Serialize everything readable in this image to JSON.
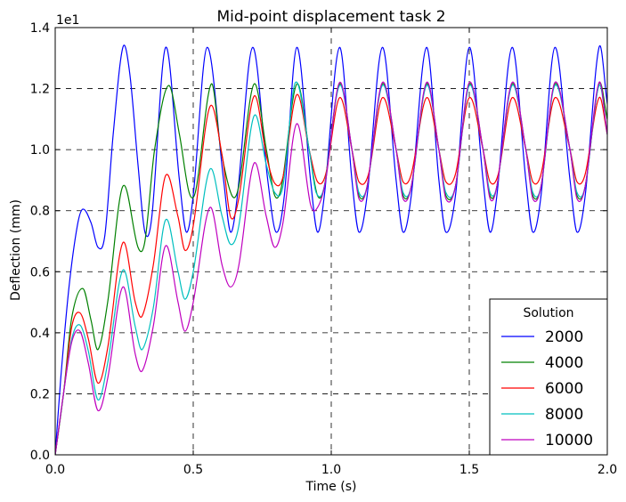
{
  "chart_data": {
    "type": "line",
    "title": "Mid-point displacement task 2",
    "xlabel": "Time (s)",
    "ylabel": "Deflection (mm)",
    "y_offset_text": "1e1",
    "xlim": [
      0.0,
      2.0
    ],
    "ylim": [
      0.0,
      1.4
    ],
    "xticks": [
      0.0,
      0.5,
      1.0,
      1.5,
      2.0
    ],
    "xtick_labels": [
      "0.0",
      "0.5",
      "1.0",
      "1.5",
      "2.0"
    ],
    "yticks": [
      0.0,
      0.2,
      0.4,
      0.6,
      0.8,
      1.0,
      1.2,
      1.4
    ],
    "ytick_labels": [
      "0.0",
      "0.2",
      "0.4",
      "0.6",
      "0.8",
      "1.0",
      "1.2",
      "1.4"
    ],
    "grid": true,
    "grid_style": "dashed",
    "legend": {
      "title": "Solution",
      "location": "lower right"
    },
    "series": [
      {
        "name": "2000",
        "color": "#0000ff",
        "x": [
          0.0,
          0.02,
          0.05,
          0.08,
          0.1,
          0.13,
          0.155,
          0.18,
          0.21,
          0.245,
          0.27,
          0.3,
          0.325,
          0.35,
          0.4,
          0.45,
          0.475,
          0.5,
          0.55,
          0.61,
          0.635,
          0.66,
          0.715,
          0.77,
          0.8,
          0.83,
          0.875,
          0.925,
          0.95,
          0.975,
          1.03,
          1.075,
          1.1,
          1.13,
          1.185,
          1.235,
          1.26,
          1.29,
          1.345,
          1.39,
          1.415,
          1.45,
          1.5,
          1.55,
          1.575,
          1.6,
          1.655,
          1.705,
          1.73,
          1.76,
          1.81,
          1.865,
          1.89,
          1.92,
          1.97,
          2.0
        ],
        "y": [
          0.0,
          0.25,
          0.55,
          0.75,
          0.805,
          0.76,
          0.68,
          0.72,
          1.05,
          1.335,
          1.25,
          0.95,
          0.73,
          0.78,
          1.335,
          0.9,
          0.73,
          0.85,
          1.335,
          0.9,
          0.73,
          0.85,
          1.335,
          0.9,
          0.73,
          0.85,
          1.335,
          0.9,
          0.73,
          0.85,
          1.335,
          0.9,
          0.73,
          0.85,
          1.335,
          0.9,
          0.73,
          0.85,
          1.335,
          0.9,
          0.73,
          0.85,
          1.335,
          0.9,
          0.73,
          0.85,
          1.335,
          0.9,
          0.73,
          0.85,
          1.335,
          0.9,
          0.73,
          0.85,
          1.335,
          1.15
        ]
      },
      {
        "name": "4000",
        "color": "#008000",
        "x": [
          0.0,
          0.03,
          0.06,
          0.1,
          0.13,
          0.155,
          0.19,
          0.245,
          0.3,
          0.325,
          0.36,
          0.41,
          0.45,
          0.485,
          0.51,
          0.565,
          0.6,
          0.64,
          0.665,
          0.72,
          0.765,
          0.795,
          0.82,
          0.875,
          0.92,
          0.95,
          0.975,
          1.03,
          1.075,
          1.1,
          1.13,
          1.185,
          1.235,
          1.26,
          1.29,
          1.345,
          1.39,
          1.415,
          1.45,
          1.5,
          1.55,
          1.575,
          1.6,
          1.655,
          1.705,
          1.73,
          1.76,
          1.81,
          1.865,
          1.89,
          1.92,
          1.97,
          2.0
        ],
        "y": [
          0.0,
          0.2,
          0.45,
          0.545,
          0.44,
          0.345,
          0.5,
          0.88,
          0.68,
          0.7,
          1.0,
          1.21,
          1.05,
          0.86,
          0.87,
          1.215,
          1.0,
          0.85,
          0.88,
          1.215,
          1.0,
          0.85,
          0.88,
          1.215,
          1.0,
          0.85,
          0.88,
          1.215,
          1.0,
          0.85,
          0.88,
          1.215,
          1.0,
          0.85,
          0.88,
          1.215,
          1.0,
          0.85,
          0.88,
          1.215,
          1.0,
          0.85,
          0.88,
          1.215,
          1.0,
          0.85,
          0.88,
          1.215,
          1.0,
          0.85,
          0.88,
          1.215,
          1.1
        ]
      },
      {
        "name": "6000",
        "color": "#ff0000",
        "x": [
          0.0,
          0.03,
          0.06,
          0.09,
          0.12,
          0.155,
          0.19,
          0.245,
          0.29,
          0.315,
          0.355,
          0.4,
          0.445,
          0.47,
          0.5,
          0.56,
          0.605,
          0.635,
          0.665,
          0.72,
          0.765,
          0.795,
          0.825,
          0.875,
          0.92,
          0.95,
          0.98,
          1.03,
          1.075,
          1.1,
          1.135,
          1.185,
          1.235,
          1.26,
          1.29,
          1.345,
          1.39,
          1.415,
          1.45,
          1.5,
          1.55,
          1.575,
          1.605,
          1.655,
          1.705,
          1.73,
          1.76,
          1.81,
          1.865,
          1.89,
          1.92,
          1.97,
          2.0
        ],
        "y": [
          0.0,
          0.2,
          0.42,
          0.465,
          0.38,
          0.235,
          0.35,
          0.695,
          0.5,
          0.455,
          0.62,
          0.915,
          0.78,
          0.67,
          0.75,
          1.14,
          0.98,
          0.78,
          0.84,
          1.175,
          0.98,
          0.89,
          0.91,
          1.18,
          1.0,
          0.895,
          0.92,
          1.17,
          1.0,
          0.895,
          0.92,
          1.17,
          1.0,
          0.895,
          0.92,
          1.17,
          1.0,
          0.895,
          0.92,
          1.17,
          1.0,
          0.895,
          0.92,
          1.17,
          1.0,
          0.895,
          0.92,
          1.17,
          1.0,
          0.895,
          0.92,
          1.17,
          1.05
        ]
      },
      {
        "name": "8000",
        "color": "#00bfbf",
        "x": [
          0.0,
          0.03,
          0.06,
          0.09,
          0.12,
          0.155,
          0.19,
          0.245,
          0.29,
          0.315,
          0.355,
          0.4,
          0.445,
          0.47,
          0.5,
          0.56,
          0.605,
          0.635,
          0.665,
          0.72,
          0.765,
          0.795,
          0.825,
          0.87,
          0.92,
          0.945,
          0.975,
          1.03,
          1.075,
          1.1,
          1.13,
          1.185,
          1.235,
          1.26,
          1.29,
          1.345,
          1.39,
          1.415,
          1.45,
          1.5,
          1.55,
          1.575,
          1.6,
          1.655,
          1.705,
          1.73,
          1.76,
          1.81,
          1.865,
          1.89,
          1.92,
          1.97,
          2.0
        ],
        "y": [
          0.0,
          0.2,
          0.38,
          0.425,
          0.34,
          0.18,
          0.3,
          0.605,
          0.42,
          0.345,
          0.48,
          0.77,
          0.6,
          0.51,
          0.6,
          0.935,
          0.78,
          0.69,
          0.75,
          1.11,
          0.95,
          0.86,
          0.88,
          1.22,
          1.0,
          0.86,
          0.88,
          1.21,
          1.0,
          0.86,
          0.88,
          1.21,
          1.0,
          0.86,
          0.88,
          1.21,
          1.0,
          0.86,
          0.88,
          1.21,
          1.0,
          0.86,
          0.88,
          1.21,
          1.0,
          0.86,
          0.88,
          1.21,
          1.0,
          0.86,
          0.88,
          1.21,
          1.05
        ]
      },
      {
        "name": "10000",
        "color": "#bf00bf",
        "x": [
          0.0,
          0.03,
          0.06,
          0.09,
          0.12,
          0.155,
          0.19,
          0.245,
          0.29,
          0.315,
          0.355,
          0.4,
          0.445,
          0.47,
          0.5,
          0.56,
          0.605,
          0.635,
          0.665,
          0.72,
          0.765,
          0.795,
          0.825,
          0.875,
          0.925,
          0.95,
          0.98,
          1.03,
          1.075,
          1.1,
          1.13,
          1.185,
          1.235,
          1.26,
          1.29,
          1.345,
          1.39,
          1.415,
          1.45,
          1.5,
          1.55,
          1.575,
          1.6,
          1.655,
          1.705,
          1.73,
          1.76,
          1.81,
          1.865,
          1.89,
          1.92,
          1.97,
          2.0
        ],
        "y": [
          0.0,
          0.2,
          0.37,
          0.405,
          0.3,
          0.145,
          0.25,
          0.55,
          0.33,
          0.275,
          0.42,
          0.685,
          0.5,
          0.405,
          0.5,
          0.81,
          0.62,
          0.55,
          0.62,
          0.955,
          0.78,
          0.68,
          0.76,
          1.085,
          0.82,
          0.81,
          0.9,
          1.22,
          1.0,
          0.84,
          0.88,
          1.22,
          1.0,
          0.84,
          0.88,
          1.22,
          1.0,
          0.84,
          0.88,
          1.22,
          1.0,
          0.84,
          0.88,
          1.22,
          1.0,
          0.84,
          0.88,
          1.22,
          1.0,
          0.84,
          0.88,
          1.22,
          1.05
        ]
      }
    ]
  }
}
